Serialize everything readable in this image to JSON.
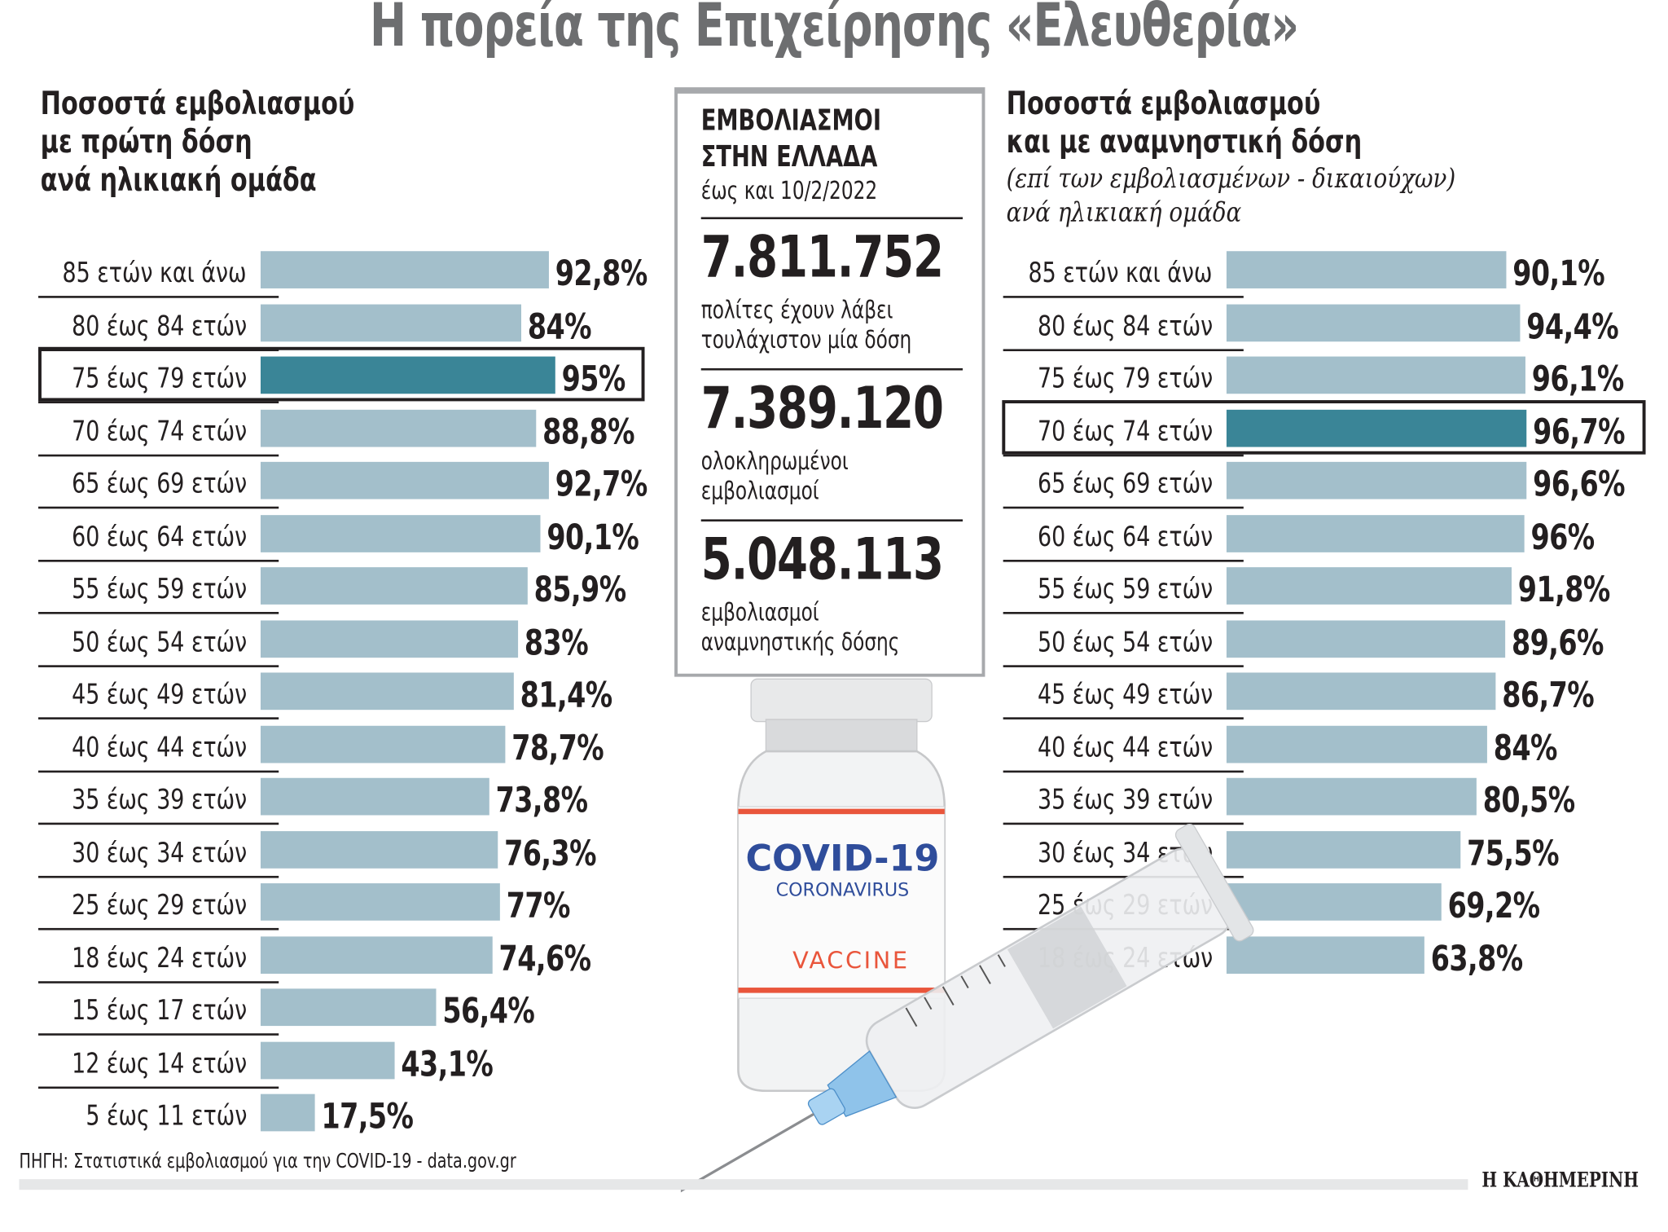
{
  "title": "Η πορεία της Επιχείρησης «Ελευθερία»",
  "colors": {
    "bar": "#a3bfcb",
    "highlight": "#3a8597",
    "title": "#6d6e70",
    "frame": "#a7a9ac"
  },
  "chart_data": [
    {
      "type": "bar",
      "orientation": "horizontal",
      "title": "Ποσοστά εμβολιασμού με πρώτη δόση ανά ηλικιακή ομάδα",
      "title_lines": [
        "Ποσοστά εμβολιασμού",
        "με πρώτη δόση",
        "ανά ηλικιακή ομάδα"
      ],
      "categories": [
        "85 ετών και άνω",
        "80 έως 84 ετών",
        "75 έως 79 ετών",
        "70 έως 74 ετών",
        "65 έως 69 ετών",
        "60 έως 64 ετών",
        "55 έως 59 ετών",
        "50 έως 54 ετών",
        "45 έως 49 ετών",
        "40 έως 44 ετών",
        "35 έως 39 ετών",
        "30 έως 34 ετών",
        "25 έως 29 ετών",
        "18 έως 24 ετών",
        "15 έως 17 ετών",
        "12 έως 14 ετών",
        "5 έως 11 ετών"
      ],
      "values": [
        92.8,
        84,
        95,
        88.8,
        92.7,
        90.1,
        85.9,
        83,
        81.4,
        78.7,
        73.8,
        76.3,
        77,
        74.6,
        56.4,
        43.1,
        17.5
      ],
      "labels": [
        "92,8%",
        "84%",
        "95%",
        "88,8%",
        "92,7%",
        "90,1%",
        "85,9%",
        "83%",
        "81,4%",
        "78,7%",
        "73,8%",
        "76,3%",
        "77%",
        "74,6%",
        "56,4%",
        "43,1%",
        "17,5%"
      ],
      "highlighted": "75 έως 79 ετών",
      "unit": "%"
    },
    {
      "type": "bar",
      "orientation": "horizontal",
      "title": "Ποσοστά εμβολιασμού και με αναμνηστική δόση",
      "title_lines": [
        "Ποσοστά εμβολιασμού",
        "και με αναμνηστική δόση"
      ],
      "subtitle_lines": [
        "(επί των εμβολιασμένων - δικαιούχων)",
        "ανά ηλικιακή ομάδα"
      ],
      "categories": [
        "85 ετών και άνω",
        "80 έως 84 ετών",
        "75 έως 79 ετών",
        "70 έως 74 ετών",
        "65 έως 69 ετών",
        "60 έως 64 ετών",
        "55 έως 59 ετών",
        "50 έως 54 ετών",
        "45 έως 49 ετών",
        "40 έως 44 ετών",
        "35 έως 39 ετών",
        "30 έως 34 ετών",
        "25 έως 29 ετών",
        "18 έως 24 ετών"
      ],
      "values": [
        90.1,
        94.4,
        96.1,
        96.7,
        96.6,
        96,
        91.8,
        89.6,
        86.7,
        84,
        80.5,
        75.5,
        69.2,
        63.8
      ],
      "labels": [
        "90,1%",
        "94,4%",
        "96,1%",
        "96,7%",
        "96,6%",
        "96%",
        "91,8%",
        "89,6%",
        "86,7%",
        "84%",
        "80,5%",
        "75,5%",
        "69,2%",
        "63,8%"
      ],
      "highlighted": "70 έως 74 ετών",
      "unit": "%"
    }
  ],
  "center": {
    "heading1": "ΕΜΒΟΛΙΑΣΜΟΙ",
    "heading2": "ΣΤΗΝ ΕΛΛΑΔΑ",
    "date": "έως και 10/2/2022",
    "stats": [
      {
        "value": "7.811.752",
        "line1": "πολίτες έχουν λάβει",
        "line2": "τουλάχιστον μία δόση"
      },
      {
        "value": "7.389.120",
        "line1": "ολοκληρωμένοι",
        "line2": "εμβολιασμοί"
      },
      {
        "value": "5.048.113",
        "line1": "εμβολιασμοί",
        "line2": "αναμνηστικής δόσης"
      }
    ]
  },
  "illustration": {
    "vial_line1": "COVID-19",
    "vial_line2": "CORONAVIRUS",
    "vial_line3": "VACCINE"
  },
  "source": "ΠΗΓΗ: Στατιστικά εμβολιασμού για την COVID-19 - data.gov.gr",
  "brand": "Η ΚΑΘΗΜΕΡΙΝΗ"
}
